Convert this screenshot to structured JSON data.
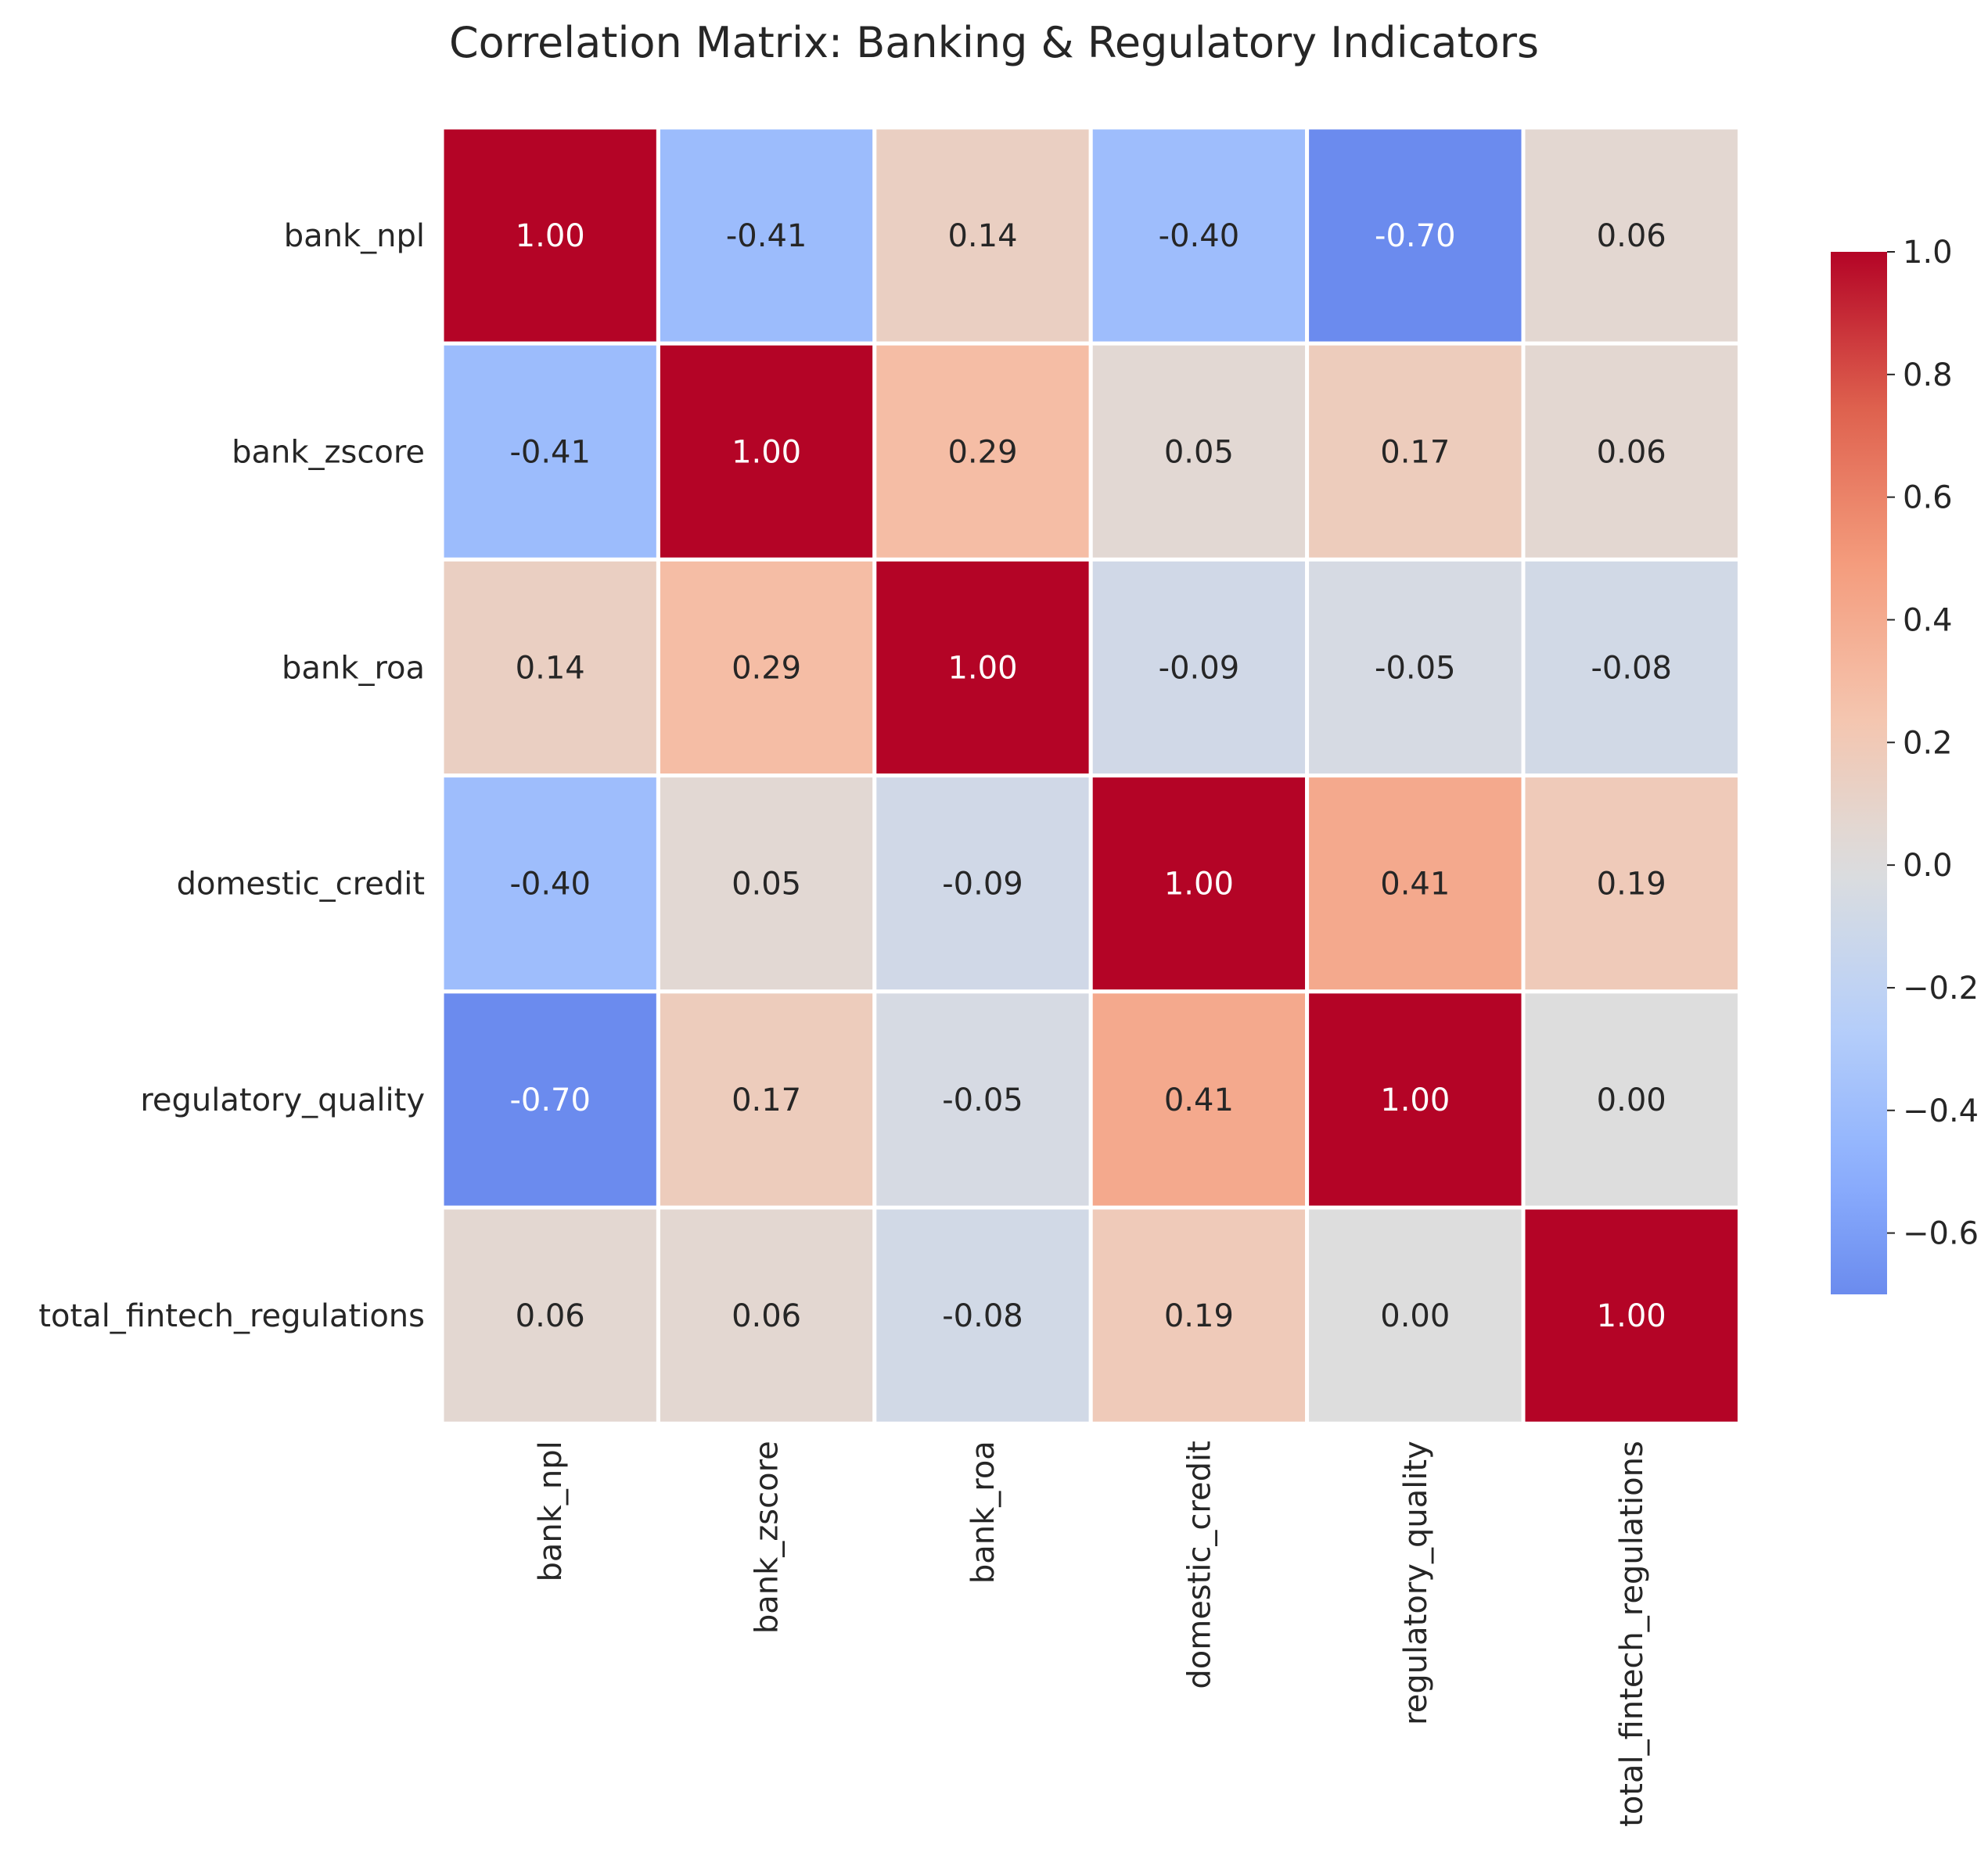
{
  "chart_data": {
    "type": "heatmap",
    "title": "Correlation Matrix: Banking & Regulatory Indicators",
    "xlabel": "",
    "ylabel": "",
    "rows": [
      "bank_npl",
      "bank_zscore",
      "bank_roa",
      "domestic_credit",
      "regulatory_quality",
      "total_fintech_regulations"
    ],
    "columns": [
      "bank_npl",
      "bank_zscore",
      "bank_roa",
      "domestic_credit",
      "regulatory_quality",
      "total_fintech_regulations"
    ],
    "values": [
      [
        1.0,
        -0.41,
        0.14,
        -0.4,
        -0.7,
        0.06
      ],
      [
        -0.41,
        1.0,
        0.29,
        0.05,
        0.17,
        0.06
      ],
      [
        0.14,
        0.29,
        1.0,
        -0.09,
        -0.05,
        -0.08
      ],
      [
        -0.4,
        0.05,
        -0.09,
        1.0,
        0.41,
        0.19
      ],
      [
        -0.7,
        0.17,
        -0.05,
        0.41,
        1.0,
        0.0
      ],
      [
        0.06,
        0.06,
        -0.08,
        0.19,
        0.0,
        1.0
      ]
    ],
    "annotation_format": "0.00",
    "colormap": "coolwarm",
    "color_range": [
      -0.7,
      1.0
    ],
    "colorbar_ticks": [
      1.0,
      0.8,
      0.6,
      0.4,
      0.2,
      0.0,
      -0.2,
      -0.4,
      -0.6
    ],
    "colorbar_tick_labels": [
      "1.0",
      "0.8",
      "0.6",
      "0.4",
      "0.2",
      "0.0",
      "−0.2",
      "−0.4",
      "−0.6"
    ],
    "legend_placement": "right",
    "grid": false
  }
}
